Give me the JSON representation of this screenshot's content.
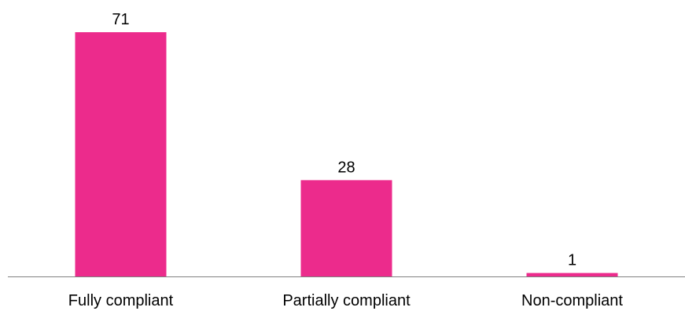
{
  "chart_data": {
    "type": "bar",
    "categories": [
      "Fully compliant",
      "Partially compliant",
      "Non-compliant"
    ],
    "values": [
      71,
      28,
      1
    ],
    "title": "",
    "xlabel": "",
    "ylabel": "",
    "ylim": [
      0,
      71
    ],
    "grid": false,
    "legend": "none",
    "data_labels": true,
    "bar_color": "#EC2B8C",
    "axis_color": "#808080"
  }
}
